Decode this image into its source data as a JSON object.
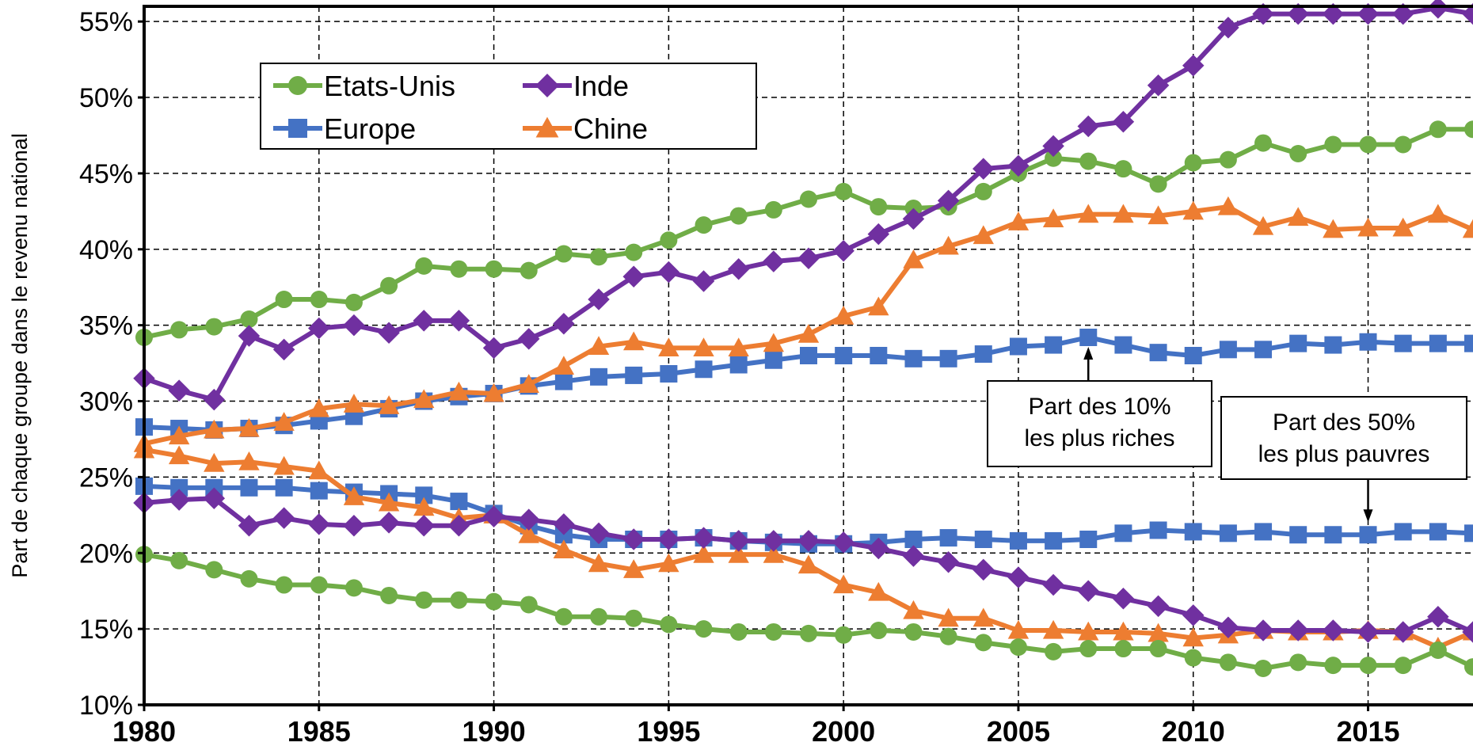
{
  "chart_data": {
    "type": "line",
    "title": "",
    "ylabel": "Part de chaque groupe dans le revenu national",
    "xlabel": "",
    "xlim": [
      1980,
      2018
    ],
    "ylim": [
      10,
      56
    ],
    "x_ticks": [
      "1980",
      "1985",
      "1990",
      "1995",
      "2000",
      "2005",
      "2010",
      "2015"
    ],
    "y_ticks": [
      "10%",
      "15%",
      "20%",
      "25%",
      "30%",
      "35%",
      "40%",
      "45%",
      "50%",
      "55%"
    ],
    "grid": true,
    "legend_position": "top-left",
    "x": [
      1980,
      1981,
      1982,
      1983,
      1984,
      1985,
      1986,
      1987,
      1988,
      1989,
      1990,
      1991,
      1992,
      1993,
      1994,
      1995,
      1996,
      1997,
      1998,
      1999,
      2000,
      2001,
      2002,
      2003,
      2004,
      2005,
      2006,
      2007,
      2008,
      2009,
      2010,
      2011,
      2012,
      2013,
      2014,
      2015,
      2016,
      2017,
      2018
    ],
    "series": [
      {
        "name": "Etats-Unis",
        "group": "top10",
        "color": "#70ad47",
        "marker": "circle",
        "values": [
          34.2,
          34.7,
          34.9,
          35.4,
          36.7,
          36.7,
          36.5,
          37.6,
          38.9,
          38.7,
          38.7,
          38.6,
          39.7,
          39.5,
          39.8,
          40.6,
          41.6,
          42.2,
          42.6,
          43.3,
          43.8,
          42.8,
          42.7,
          42.8,
          43.8,
          45.0,
          46.0,
          45.8,
          45.3,
          44.3,
          45.7,
          45.9,
          47.0,
          46.3,
          46.9,
          46.9,
          46.9,
          47.9,
          47.9
        ]
      },
      {
        "name": "Inde",
        "group": "top10",
        "color": "#7030a0",
        "marker": "diamond",
        "values": [
          31.5,
          30.7,
          30.1,
          34.3,
          33.4,
          34.8,
          35.0,
          34.5,
          35.3,
          35.3,
          33.5,
          34.1,
          35.1,
          36.7,
          38.2,
          38.5,
          37.9,
          38.7,
          39.2,
          39.4,
          39.9,
          41.0,
          42.0,
          43.2,
          45.3,
          45.5,
          46.8,
          48.1,
          48.4,
          50.8,
          52.1,
          54.6,
          55.5,
          55.5,
          55.5,
          55.5,
          55.5,
          55.9,
          55.5
        ]
      },
      {
        "name": "Europe",
        "group": "top10",
        "color": "#4472c4",
        "marker": "square",
        "values": [
          28.3,
          28.2,
          28.1,
          28.2,
          28.4,
          28.7,
          29.0,
          29.5,
          30.0,
          30.3,
          30.5,
          31.0,
          31.3,
          31.6,
          31.7,
          31.8,
          32.1,
          32.4,
          32.7,
          33.0,
          33.0,
          33.0,
          32.8,
          32.8,
          33.1,
          33.6,
          33.7,
          34.2,
          33.7,
          33.2,
          33.0,
          33.4,
          33.4,
          33.8,
          33.7,
          33.9,
          33.8,
          33.8,
          33.8
        ]
      },
      {
        "name": "Chine",
        "group": "top10",
        "color": "#ed7d31",
        "marker": "triangle",
        "values": [
          27.2,
          27.7,
          28.1,
          28.2,
          28.6,
          29.5,
          29.8,
          29.7,
          30.1,
          30.6,
          30.5,
          31.1,
          32.3,
          33.6,
          33.9,
          33.5,
          33.5,
          33.5,
          33.8,
          34.4,
          35.6,
          36.2,
          39.3,
          40.2,
          40.9,
          41.8,
          42.0,
          42.3,
          42.3,
          42.2,
          42.5,
          42.8,
          41.5,
          42.1,
          41.3,
          41.4,
          41.4,
          42.3,
          41.3
        ]
      },
      {
        "name": "Europe",
        "group": "bottom50",
        "color": "#4472c4",
        "marker": "square",
        "values": [
          24.4,
          24.3,
          24.3,
          24.3,
          24.3,
          24.1,
          24.0,
          23.9,
          23.8,
          23.4,
          22.6,
          21.8,
          21.2,
          20.9,
          20.9,
          20.9,
          21.0,
          20.8,
          20.7,
          20.6,
          20.6,
          20.7,
          20.9,
          21.0,
          20.9,
          20.8,
          20.8,
          20.9,
          21.3,
          21.5,
          21.4,
          21.3,
          21.4,
          21.2,
          21.2,
          21.2,
          21.4,
          21.4,
          21.3
        ]
      },
      {
        "name": "Chine",
        "group": "bottom50",
        "color": "#ed7d31",
        "marker": "triangle",
        "values": [
          26.8,
          26.4,
          25.9,
          26.0,
          25.7,
          25.4,
          23.7,
          23.3,
          23.0,
          22.3,
          22.5,
          21.2,
          20.2,
          19.3,
          18.9,
          19.3,
          19.9,
          19.9,
          19.9,
          19.2,
          17.9,
          17.4,
          16.2,
          15.7,
          15.7,
          14.9,
          14.9,
          14.8,
          14.8,
          14.7,
          14.4,
          14.6,
          14.9,
          14.8,
          14.8,
          14.9,
          14.8,
          13.8,
          14.8
        ]
      },
      {
        "name": "Inde",
        "group": "bottom50",
        "color": "#7030a0",
        "marker": "diamond",
        "values": [
          23.3,
          23.5,
          23.6,
          21.8,
          22.3,
          21.9,
          21.8,
          22.0,
          21.8,
          21.8,
          22.4,
          22.2,
          21.9,
          21.3,
          20.9,
          20.9,
          21.0,
          20.8,
          20.8,
          20.8,
          20.7,
          20.3,
          19.8,
          19.4,
          18.9,
          18.4,
          17.9,
          17.5,
          17.0,
          16.5,
          15.9,
          15.1,
          14.9,
          14.9,
          14.9,
          14.8,
          14.8,
          15.8,
          14.8
        ]
      },
      {
        "name": "Etats-Unis",
        "group": "bottom50",
        "color": "#70ad47",
        "marker": "circle",
        "values": [
          19.9,
          19.5,
          18.9,
          18.3,
          17.9,
          17.9,
          17.7,
          17.2,
          16.9,
          16.9,
          16.8,
          16.6,
          15.8,
          15.8,
          15.7,
          15.3,
          15.0,
          14.8,
          14.8,
          14.7,
          14.6,
          14.9,
          14.8,
          14.5,
          14.1,
          13.8,
          13.5,
          13.7,
          13.7,
          13.7,
          13.1,
          12.8,
          12.4,
          12.8,
          12.6,
          12.6,
          12.6,
          13.6,
          12.5
        ]
      }
    ],
    "legend": [
      {
        "label": "Etats-Unis",
        "color": "#70ad47",
        "marker": "circle"
      },
      {
        "label": "Inde",
        "color": "#7030a0",
        "marker": "diamond"
      },
      {
        "label": "Europe",
        "color": "#4472c4",
        "marker": "square"
      },
      {
        "label": "Chine",
        "color": "#ed7d31",
        "marker": "triangle"
      }
    ],
    "annotations": [
      {
        "id": "top10",
        "lines": [
          "Part des 10%",
          "les plus riches"
        ],
        "arrow_to_x": 2007,
        "arrow_to_y": 34.2
      },
      {
        "id": "bottom50",
        "lines": [
          "Part des 50%",
          "les plus pauvres"
        ],
        "arrow_to_x": 2015,
        "arrow_to_y": 21.2
      }
    ]
  }
}
